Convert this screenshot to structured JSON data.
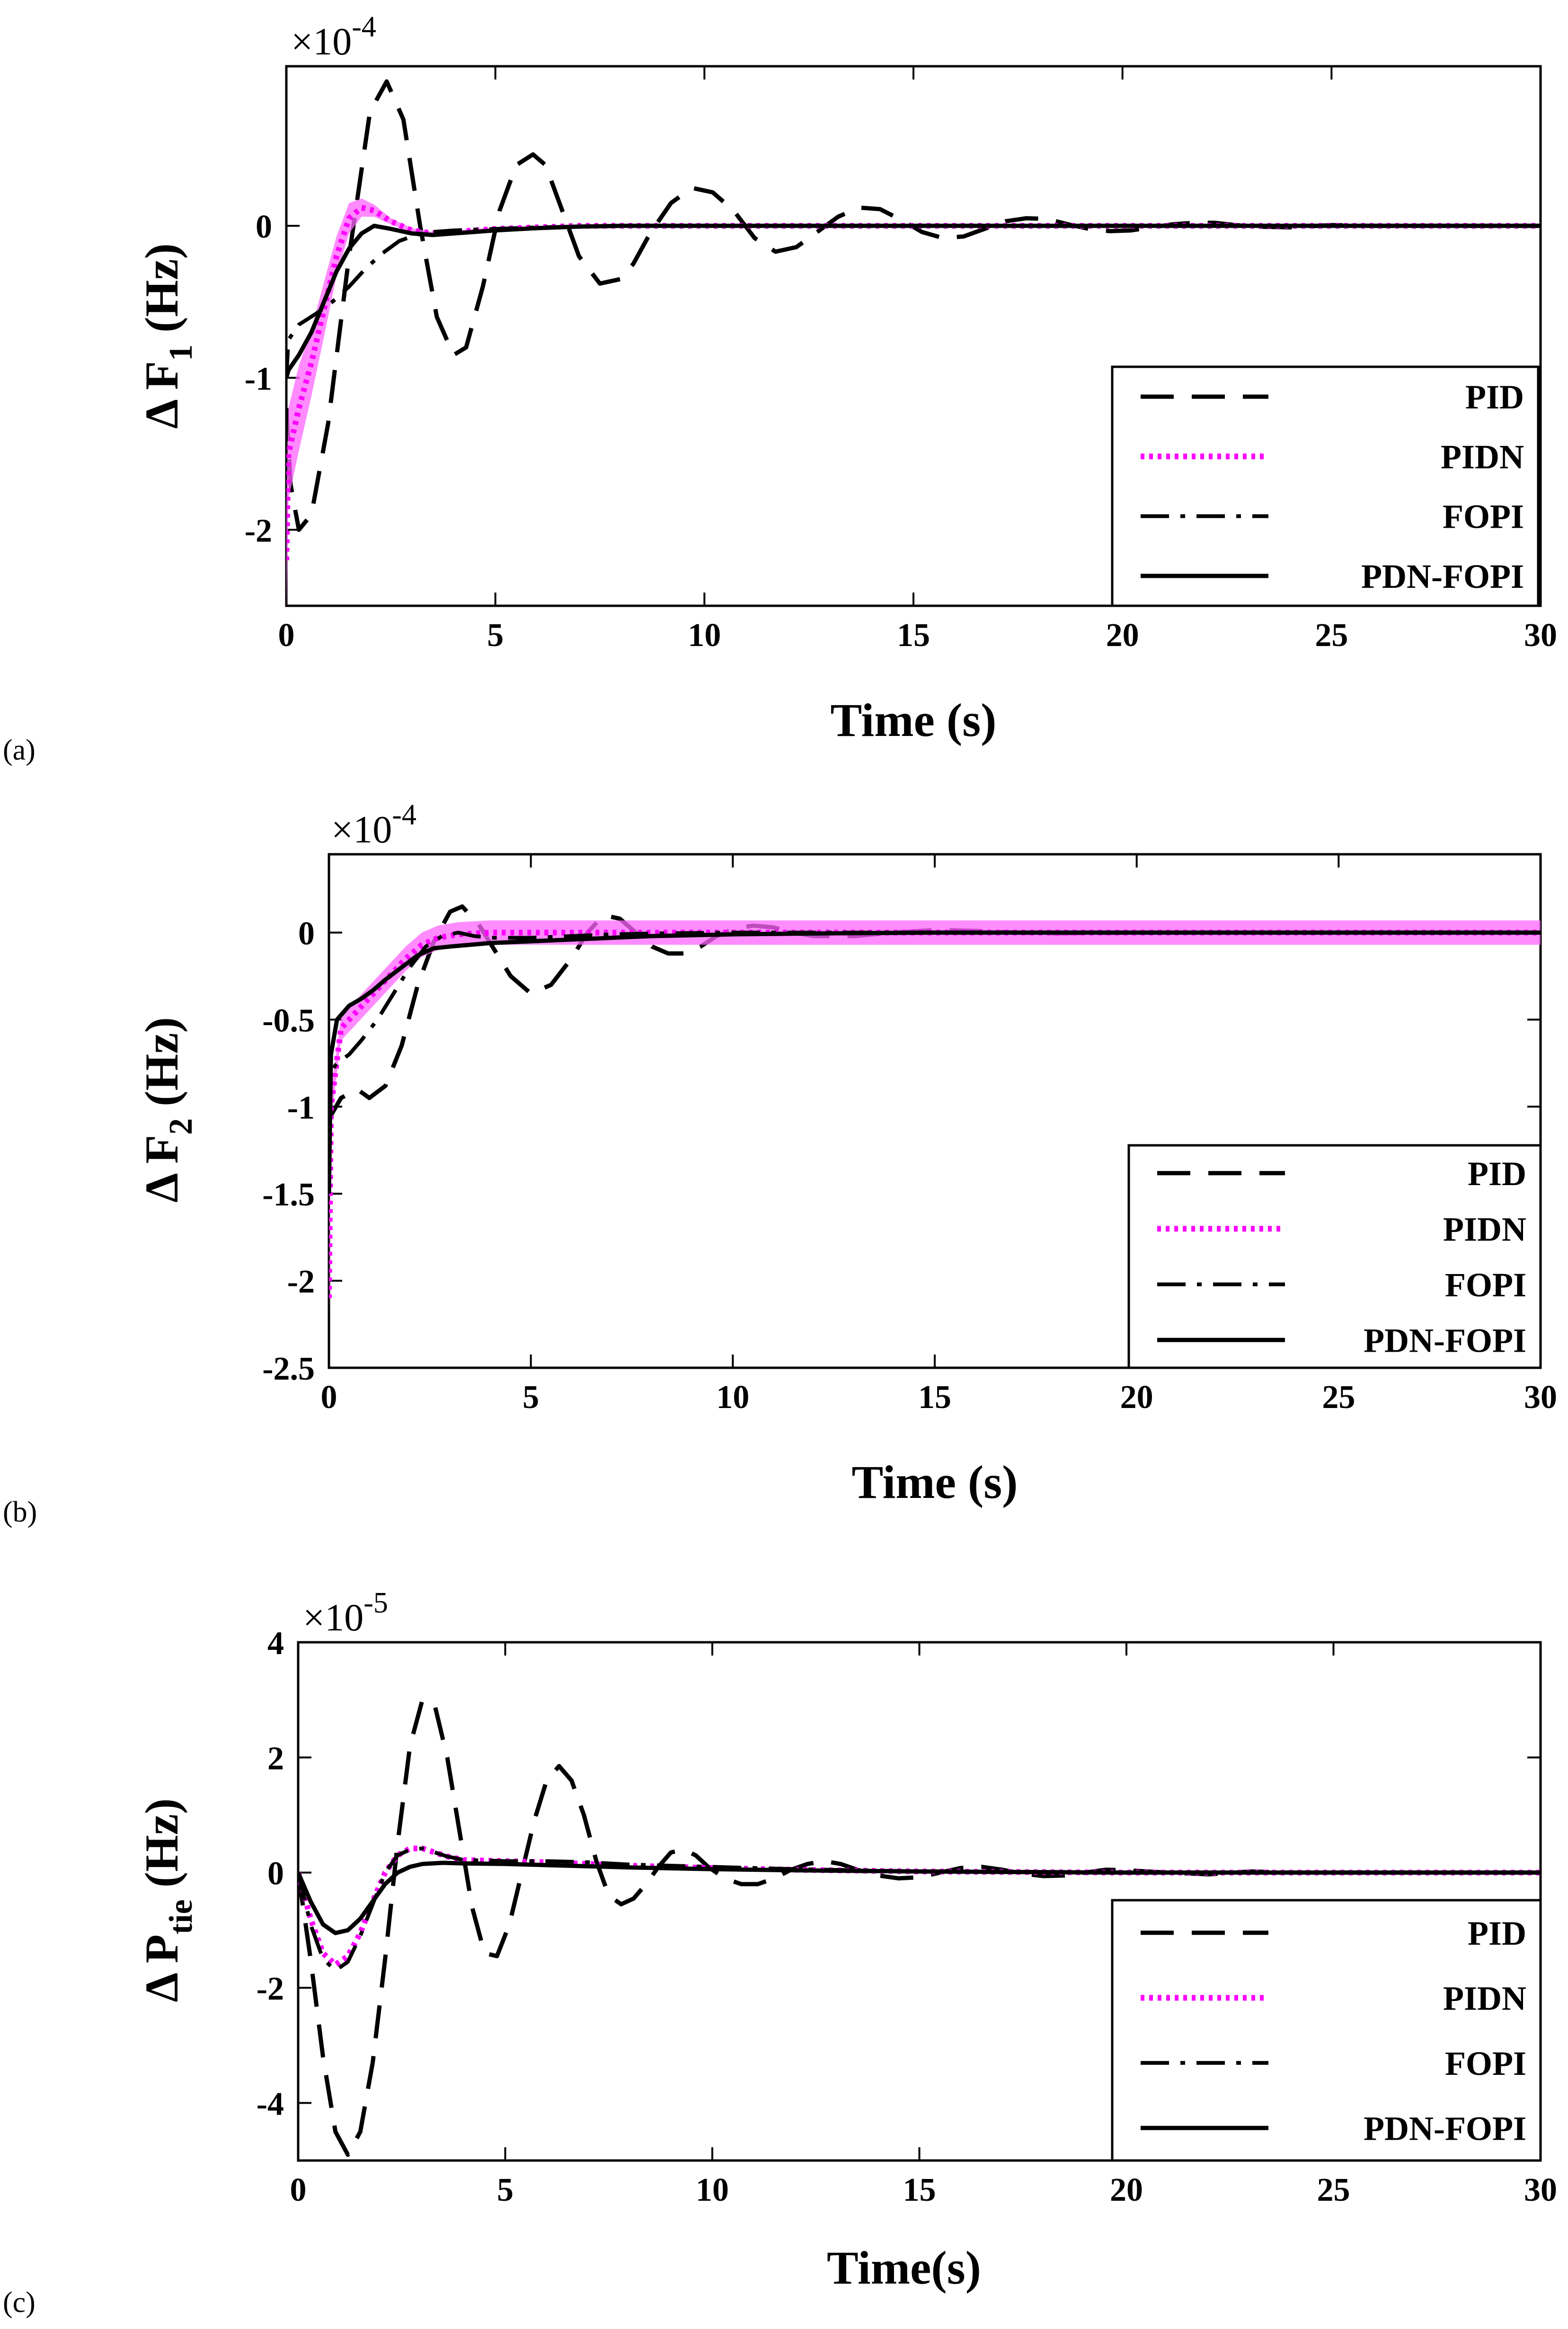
{
  "figure": {
    "panels": [
      {
        "label": "(a)",
        "ylabel_prefix": "Δ F",
        "ylabel_sub": "1",
        "ylabel_suffix": " (Hz)",
        "xlabel": "Time (s)",
        "exponent_base": "×10",
        "exponent_power": "-4"
      },
      {
        "label": "(b)",
        "ylabel_prefix": "Δ F",
        "ylabel_sub": "2",
        "ylabel_suffix": " (Hz)",
        "xlabel": "Time (s)",
        "exponent_base": "×10",
        "exponent_power": "-4"
      },
      {
        "label": "(c)",
        "ylabel_prefix": "Δ P",
        "ylabel_sub": "tie",
        "ylabel_suffix": " (Hz)",
        "xlabel": "Time(s)",
        "exponent_base": "×10",
        "exponent_power": "-5"
      }
    ]
  },
  "colors": {
    "black": "#000000",
    "magenta": "#ff00ff",
    "band": "#ff66ff"
  },
  "chart_data": [
    {
      "type": "line",
      "title": "",
      "xlabel": "Time (s)",
      "ylabel": "Δ F1 (Hz)",
      "scale": "×10^-4",
      "xlim": [
        0,
        30
      ],
      "ylim": [
        -2.5,
        1.05
      ],
      "xticks": [
        "0",
        "5",
        "10",
        "15",
        "20",
        "25",
        "30"
      ],
      "yticks": [
        "-2",
        "-1",
        "0"
      ],
      "ytick_values": [
        -2,
        -1,
        0
      ],
      "legend": [
        "PID",
        "PIDN",
        "FOPI",
        "PDN-FOPI"
      ],
      "legend_position": "bottom-right",
      "series": [
        {
          "name": "PID",
          "style": "dashed",
          "x": [
            0,
            0.1,
            0.3,
            0.6,
            1.0,
            1.5,
            2.0,
            2.4,
            2.8,
            3.2,
            3.6,
            4.0,
            4.3,
            4.7,
            5.1,
            5.5,
            5.9,
            6.2,
            6.6,
            7.0,
            7.5,
            8.0,
            8.3,
            8.7,
            9.2,
            9.7,
            10.2,
            10.7,
            11.2,
            11.7,
            12.2,
            12.7,
            13.2,
            13.7,
            14.2,
            14.7,
            15.2,
            15.7,
            16.2,
            16.7,
            17.2,
            17.7,
            18.2,
            18.7,
            19.2,
            19.7,
            20.2,
            20.7,
            21.2,
            21.7,
            22.2,
            22.7,
            23.2,
            24,
            25,
            26,
            27,
            28,
            29,
            30
          ],
          "values": [
            -1.2,
            -1.7,
            -2.0,
            -1.9,
            -1.3,
            -0.2,
            0.75,
            0.95,
            0.7,
            0.0,
            -0.6,
            -0.85,
            -0.8,
            -0.4,
            0.1,
            0.4,
            0.47,
            0.4,
            0.1,
            -0.2,
            -0.38,
            -0.35,
            -0.25,
            -0.05,
            0.15,
            0.25,
            0.22,
            0.1,
            -0.08,
            -0.17,
            -0.14,
            -0.04,
            0.06,
            0.12,
            0.11,
            0.04,
            -0.04,
            -0.08,
            -0.07,
            -0.02,
            0.03,
            0.05,
            0.045,
            0.01,
            -0.02,
            -0.035,
            -0.03,
            -0.01,
            0.01,
            0.02,
            0.02,
            0.005,
            -0.005,
            -0.01,
            0.005,
            0.0,
            0.0,
            0.0,
            0.0,
            0.0
          ]
        },
        {
          "name": "PIDN",
          "style": "dotted",
          "x": [
            0,
            0.05,
            0.3,
            0.6,
            0.9,
            1.2,
            1.5,
            1.8,
            2.1,
            2.5,
            3.0,
            3.5,
            4.0,
            5,
            6,
            7,
            8,
            10,
            15,
            20,
            25,
            30
          ],
          "values": [
            -2.2,
            -1.5,
            -1.2,
            -0.9,
            -0.55,
            -0.2,
            0.05,
            0.12,
            0.1,
            0.03,
            -0.03,
            -0.05,
            -0.04,
            -0.02,
            -0.01,
            0.0,
            0.0,
            0.0,
            0.0,
            0.0,
            0.0,
            0.0
          ],
          "band_half_width": [
            0.35,
            0.3,
            0.28,
            0.22,
            0.18,
            0.13,
            0.1,
            0.06,
            0.04,
            0.02,
            0.015,
            0.01,
            0.01,
            0.01,
            0.01,
            0.01,
            0.01,
            0.01,
            0.01,
            0.01,
            0.01,
            0.01
          ]
        },
        {
          "name": "FOPI",
          "style": "dashdot",
          "x": [
            0,
            0.05,
            0.3,
            0.7,
            1.1,
            1.5,
            1.9,
            2.3,
            2.7,
            3.1,
            3.5,
            4.0,
            5,
            6,
            7,
            8,
            10,
            15,
            20,
            25,
            30
          ],
          "values": [
            -1.0,
            -0.75,
            -0.65,
            -0.58,
            -0.5,
            -0.4,
            -0.28,
            -0.18,
            -0.1,
            -0.06,
            -0.04,
            -0.03,
            -0.02,
            -0.01,
            -0.005,
            0.0,
            0.0,
            0.0,
            0.0,
            0.0,
            0.0
          ]
        },
        {
          "name": "PDN-FOPI",
          "style": "solid",
          "x": [
            0,
            0.05,
            0.3,
            0.6,
            0.9,
            1.2,
            1.5,
            1.8,
            2.1,
            2.5,
            3.0,
            3.5,
            4.0,
            5,
            6,
            7,
            8,
            10,
            15,
            20,
            25,
            30
          ],
          "values": [
            -1.0,
            -0.95,
            -0.85,
            -0.7,
            -0.5,
            -0.3,
            -0.15,
            -0.05,
            0.0,
            -0.02,
            -0.05,
            -0.06,
            -0.05,
            -0.03,
            -0.015,
            -0.005,
            0.0,
            0.0,
            0.0,
            0.0,
            0.0,
            0.0
          ]
        }
      ]
    },
    {
      "type": "line",
      "title": "",
      "xlabel": "Time (s)",
      "ylabel": "Δ F2 (Hz)",
      "scale": "×10^-4",
      "xlim": [
        0,
        30
      ],
      "ylim": [
        -2.5,
        0.45
      ],
      "xticks": [
        "0",
        "5",
        "10",
        "15",
        "20",
        "25",
        "30"
      ],
      "yticks": [
        "-2.5",
        "-2",
        "-1.5",
        "-1",
        "-0.5",
        "0"
      ],
      "ytick_values": [
        -2.5,
        -2,
        -1.5,
        -1,
        -0.5,
        0
      ],
      "legend": [
        "PID",
        "PIDN",
        "FOPI",
        "PDN-FOPI"
      ],
      "legend_position": "bottom-right",
      "series": [
        {
          "name": "PID",
          "style": "dashed",
          "x": [
            0,
            0.05,
            0.3,
            0.7,
            1.0,
            1.4,
            1.8,
            2.2,
            2.6,
            3.0,
            3.3,
            3.7,
            4.1,
            4.5,
            5.0,
            5.5,
            6.0,
            6.4,
            6.8,
            7.2,
            7.6,
            8.0,
            8.4,
            8.8,
            9.2,
            9.6,
            10.0,
            10.5,
            11,
            11.5,
            12,
            13,
            14,
            15,
            16,
            17,
            18,
            20,
            22,
            25,
            30
          ],
          "values": [
            -1.0,
            -1.05,
            -0.95,
            -0.9,
            -0.95,
            -0.88,
            -0.65,
            -0.3,
            -0.05,
            0.12,
            0.15,
            0.05,
            -0.1,
            -0.25,
            -0.35,
            -0.3,
            -0.15,
            0.0,
            0.1,
            0.08,
            0.0,
            -0.08,
            -0.12,
            -0.12,
            -0.08,
            -0.02,
            0.02,
            0.04,
            0.03,
            0.0,
            -0.02,
            -0.02,
            0.0,
            0.015,
            0.01,
            0.0,
            -0.005,
            0.0,
            0.0,
            0.0,
            0.0
          ]
        },
        {
          "name": "PIDN",
          "style": "dotted",
          "x": [
            0,
            0.05,
            0.3,
            0.7,
            1.1,
            1.5,
            1.9,
            2.3,
            2.7,
            3.2,
            4,
            5,
            6,
            8,
            10,
            15,
            20,
            25,
            30
          ],
          "values": [
            -2.1,
            -1.0,
            -0.55,
            -0.45,
            -0.35,
            -0.25,
            -0.15,
            -0.07,
            -0.03,
            -0.01,
            0.0,
            0.0,
            0.0,
            0.0,
            0.0,
            0.0,
            0.0,
            0.0,
            0.0
          ],
          "band_half_width": [
            0.1,
            0.08,
            0.07,
            0.07,
            0.07,
            0.07,
            0.07,
            0.07,
            0.07,
            0.07,
            0.07,
            0.07,
            0.07,
            0.07,
            0.07,
            0.07,
            0.07,
            0.07,
            0.07
          ]
        },
        {
          "name": "FOPI",
          "style": "dashdot",
          "x": [
            0,
            0.05,
            0.2,
            0.5,
            0.8,
            1.2,
            1.6,
            2.0,
            2.4,
            2.8,
            3.2,
            3.6,
            4.0,
            5,
            6,
            7,
            8,
            10,
            15,
            20,
            25,
            30
          ],
          "values": [
            -1.0,
            -0.8,
            -0.75,
            -0.7,
            -0.62,
            -0.5,
            -0.35,
            -0.2,
            -0.08,
            -0.02,
            0.0,
            -0.02,
            -0.03,
            -0.03,
            -0.02,
            -0.01,
            -0.005,
            0.0,
            0.0,
            0.0,
            0.0,
            0.0
          ]
        },
        {
          "name": "PDN-FOPI",
          "style": "solid",
          "x": [
            0,
            0.05,
            0.2,
            0.5,
            0.8,
            1.1,
            1.4,
            1.8,
            2.2,
            2.6,
            3.0,
            3.5,
            4.0,
            5,
            6,
            7,
            8,
            9,
            10,
            12,
            15,
            20,
            25,
            30
          ],
          "values": [
            -1.5,
            -0.7,
            -0.5,
            -0.42,
            -0.38,
            -0.33,
            -0.27,
            -0.2,
            -0.13,
            -0.09,
            -0.08,
            -0.07,
            -0.06,
            -0.05,
            -0.04,
            -0.03,
            -0.02,
            -0.015,
            -0.01,
            -0.005,
            0.0,
            0.0,
            0.0,
            0.0
          ]
        }
      ]
    },
    {
      "type": "line",
      "title": "",
      "xlabel": "Time(s)",
      "ylabel": "Δ Ptie (Hz)",
      "scale": "×10^-5",
      "xlim": [
        0,
        30
      ],
      "ylim": [
        -5,
        4
      ],
      "xticks": [
        "0",
        "5",
        "10",
        "15",
        "20",
        "25",
        "30"
      ],
      "yticks": [
        "-4",
        "-2",
        "0",
        "2",
        "4"
      ],
      "ytick_values": [
        -4,
        -2,
        0,
        2,
        4
      ],
      "legend": [
        "PID",
        "PIDN",
        "FOPI",
        "PDN-FOPI"
      ],
      "legend_position": "bottom-right",
      "series": [
        {
          "name": "PID",
          "style": "dashed",
          "x": [
            0,
            0.3,
            0.6,
            0.9,
            1.2,
            1.5,
            1.8,
            2.1,
            2.4,
            2.7,
            3.0,
            3.3,
            3.6,
            3.9,
            4.2,
            4.5,
            4.8,
            5.1,
            5.4,
            5.7,
            6.0,
            6.3,
            6.6,
            6.9,
            7.2,
            7.5,
            7.8,
            8.1,
            8.4,
            8.7,
            9.0,
            9.3,
            9.6,
            9.9,
            10.3,
            10.7,
            11.1,
            11.5,
            11.9,
            12.3,
            12.7,
            13.1,
            13.5,
            14,
            14.5,
            15,
            15.5,
            16,
            16.5,
            17,
            17.5,
            18,
            18.5,
            19,
            19.5,
            20,
            21,
            22,
            23,
            24,
            25,
            26,
            27,
            28,
            29,
            30
          ],
          "values": [
            0,
            -1.5,
            -3.2,
            -4.5,
            -4.9,
            -4.5,
            -3.3,
            -1.5,
            0.5,
            2.2,
            3.0,
            2.9,
            2.0,
            0.7,
            -0.6,
            -1.4,
            -1.45,
            -0.9,
            0.0,
            0.9,
            1.6,
            1.85,
            1.6,
            1.0,
            0.2,
            -0.4,
            -0.55,
            -0.45,
            -0.2,
            0.1,
            0.35,
            0.4,
            0.3,
            0.1,
            -0.1,
            -0.2,
            -0.2,
            -0.1,
            0.05,
            0.15,
            0.2,
            0.15,
            0.05,
            -0.05,
            -0.1,
            -0.08,
            0.0,
            0.08,
            0.1,
            0.05,
            -0.02,
            -0.06,
            -0.05,
            0.0,
            0.05,
            0.04,
            0.0,
            -0.03,
            0.02,
            0.0,
            0.0,
            0.0,
            0.0,
            0.0,
            0.0,
            0.0
          ]
        },
        {
          "name": "PIDN",
          "style": "dotted",
          "x": [
            0,
            0.3,
            0.6,
            0.9,
            1.2,
            1.5,
            1.8,
            2.1,
            2.4,
            2.7,
            3.0,
            3.3,
            3.6,
            4.0,
            5,
            6,
            7,
            8,
            10,
            12,
            15,
            20,
            25,
            30
          ],
          "values": [
            0,
            -0.8,
            -1.4,
            -1.6,
            -1.45,
            -1.05,
            -0.5,
            0.0,
            0.3,
            0.42,
            0.42,
            0.35,
            0.28,
            0.22,
            0.2,
            0.18,
            0.15,
            0.12,
            0.08,
            0.05,
            0.02,
            0.0,
            0.0,
            0.0
          ]
        },
        {
          "name": "FOPI",
          "style": "dashdot",
          "x": [
            0,
            0.3,
            0.6,
            0.9,
            1.2,
            1.5,
            1.8,
            2.1,
            2.4,
            2.7,
            3.0,
            3.3,
            3.6,
            4.0,
            5,
            6,
            7,
            8,
            10,
            12,
            15,
            20,
            25,
            30
          ],
          "values": [
            0,
            -0.9,
            -1.5,
            -1.7,
            -1.55,
            -1.1,
            -0.55,
            0.0,
            0.3,
            0.4,
            0.42,
            0.35,
            0.28,
            0.22,
            0.2,
            0.2,
            0.18,
            0.14,
            0.1,
            0.06,
            0.02,
            0.0,
            0.0,
            0.0
          ]
        },
        {
          "name": "PDN-FOPI",
          "style": "solid",
          "x": [
            0,
            0.3,
            0.6,
            0.9,
            1.2,
            1.5,
            1.8,
            2.1,
            2.4,
            2.7,
            3.0,
            3.5,
            4.0,
            5,
            6,
            7,
            8,
            10,
            12,
            15,
            20,
            25,
            30
          ],
          "values": [
            0,
            -0.5,
            -0.9,
            -1.05,
            -1.0,
            -0.8,
            -0.5,
            -0.2,
            0.0,
            0.1,
            0.15,
            0.17,
            0.16,
            0.15,
            0.13,
            0.11,
            0.09,
            0.06,
            0.04,
            0.02,
            0.0,
            0.0,
            0.0
          ]
        }
      ]
    }
  ]
}
